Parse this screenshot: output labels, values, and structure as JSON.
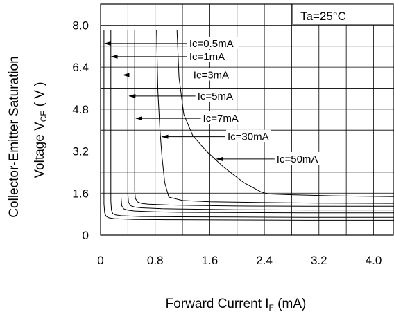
{
  "chart_data": {
    "type": "line",
    "condition": "Ta=25°C",
    "xlabel": {
      "text": "Forward Current I",
      "sub": "F",
      "suffix": " (mA)"
    },
    "ylabel": {
      "line1": "Collector-Emitter Saturation",
      "line2_pre": "Voltage V",
      "line2_sub": "CE",
      "line2_suffix": " ( V )"
    },
    "xlim": [
      0,
      4.3
    ],
    "ylim": [
      0,
      8.8
    ],
    "x_ticks": [
      {
        "v": 0,
        "label": "0"
      },
      {
        "v": 0.8,
        "label": "0.8"
      },
      {
        "v": 1.6,
        "label": "1.6"
      },
      {
        "v": 2.4,
        "label": "2.4"
      },
      {
        "v": 3.2,
        "label": "3.2"
      },
      {
        "v": 4.0,
        "label": "4.0"
      }
    ],
    "y_ticks": [
      {
        "v": 0,
        "label": "0"
      },
      {
        "v": 1.6,
        "label": "1.6"
      },
      {
        "v": 3.2,
        "label": "3.2"
      },
      {
        "v": 4.8,
        "label": "4.8"
      },
      {
        "v": 6.4,
        "label": "6.4"
      },
      {
        "v": 8.0,
        "label": "8.0"
      }
    ],
    "grid": true,
    "grid_step_x": 0.4,
    "grid_step_y": 0.8,
    "series": [
      {
        "name": "Ic=0.5mA",
        "x": [
          0.05,
          0.05,
          0.06,
          0.08,
          0.12,
          0.2,
          0.5,
          1.0,
          2.0,
          3.0,
          4.3
        ],
        "y": [
          7.8,
          1.2,
          0.85,
          0.72,
          0.66,
          0.63,
          0.6,
          0.59,
          0.58,
          0.57,
          0.57
        ]
      },
      {
        "name": "Ic=1mA",
        "x": [
          0.15,
          0.15,
          0.16,
          0.18,
          0.22,
          0.3,
          0.6,
          1.0,
          2.0,
          3.0,
          4.3
        ],
        "y": [
          7.8,
          1.3,
          0.95,
          0.82,
          0.77,
          0.74,
          0.71,
          0.7,
          0.69,
          0.68,
          0.68
        ]
      },
      {
        "name": "Ic=3mA",
        "x": [
          0.3,
          0.3,
          0.31,
          0.34,
          0.4,
          0.5,
          0.8,
          1.2,
          2.0,
          3.0,
          4.3
        ],
        "y": [
          7.8,
          1.45,
          1.12,
          1.0,
          0.95,
          0.92,
          0.89,
          0.87,
          0.86,
          0.85,
          0.85
        ]
      },
      {
        "name": "Ic=5mA",
        "x": [
          0.4,
          0.4,
          0.41,
          0.44,
          0.5,
          0.6,
          0.9,
          1.3,
          2.0,
          3.0,
          4.3
        ],
        "y": [
          7.8,
          1.55,
          1.25,
          1.12,
          1.07,
          1.04,
          1.01,
          0.99,
          0.97,
          0.96,
          0.96
        ]
      },
      {
        "name": "Ic=7mA",
        "x": [
          0.5,
          0.5,
          0.51,
          0.54,
          0.6,
          0.7,
          1.0,
          1.4,
          2.0,
          3.0,
          4.3
        ],
        "y": [
          7.8,
          1.7,
          1.4,
          1.27,
          1.21,
          1.18,
          1.15,
          1.13,
          1.11,
          1.1,
          1.1
        ]
      },
      {
        "name": "Ic=30mA",
        "x": [
          0.82,
          0.84,
          0.87,
          0.9,
          0.94,
          1.0,
          1.2,
          1.6,
          2.4,
          3.2,
          4.3
        ],
        "y": [
          7.8,
          5.5,
          4.0,
          3.0,
          2.0,
          1.45,
          1.32,
          1.27,
          1.24,
          1.22,
          1.21
        ]
      },
      {
        "name": "Ic=50mA",
        "x": [
          1.12,
          1.15,
          1.22,
          1.35,
          1.55,
          1.8,
          2.1,
          2.35,
          2.45,
          2.8,
          3.4,
          4.3
        ],
        "y": [
          7.8,
          6.0,
          4.6,
          3.8,
          3.2,
          2.6,
          2.0,
          1.65,
          1.57,
          1.54,
          1.5,
          1.47
        ]
      }
    ],
    "annotations": [
      {
        "label": "Ic=0.5mA",
        "arrow_to": [
          0.06,
          7.3
        ],
        "y": 7.3,
        "text_x": 1.3
      },
      {
        "label": "Ic=1mA",
        "arrow_to": [
          0.16,
          6.8
        ],
        "y": 6.8,
        "text_x": 1.3
      },
      {
        "label": "Ic=3mA",
        "arrow_to": [
          0.33,
          6.1
        ],
        "y": 6.1,
        "text_x": 1.36
      },
      {
        "label": "Ic=5mA",
        "arrow_to": [
          0.42,
          5.3
        ],
        "y": 5.3,
        "text_x": 1.42
      },
      {
        "label": "Ic=7mA",
        "arrow_to": [
          0.52,
          4.45
        ],
        "y": 4.45,
        "text_x": 1.5
      },
      {
        "label": "Ic=30mA",
        "arrow_to": [
          0.9,
          3.75
        ],
        "y": 3.75,
        "text_x": 1.86
      },
      {
        "label": "Ic=50mA",
        "arrow_to": [
          1.7,
          2.9
        ],
        "y": 2.9,
        "text_x": 2.58
      }
    ]
  }
}
